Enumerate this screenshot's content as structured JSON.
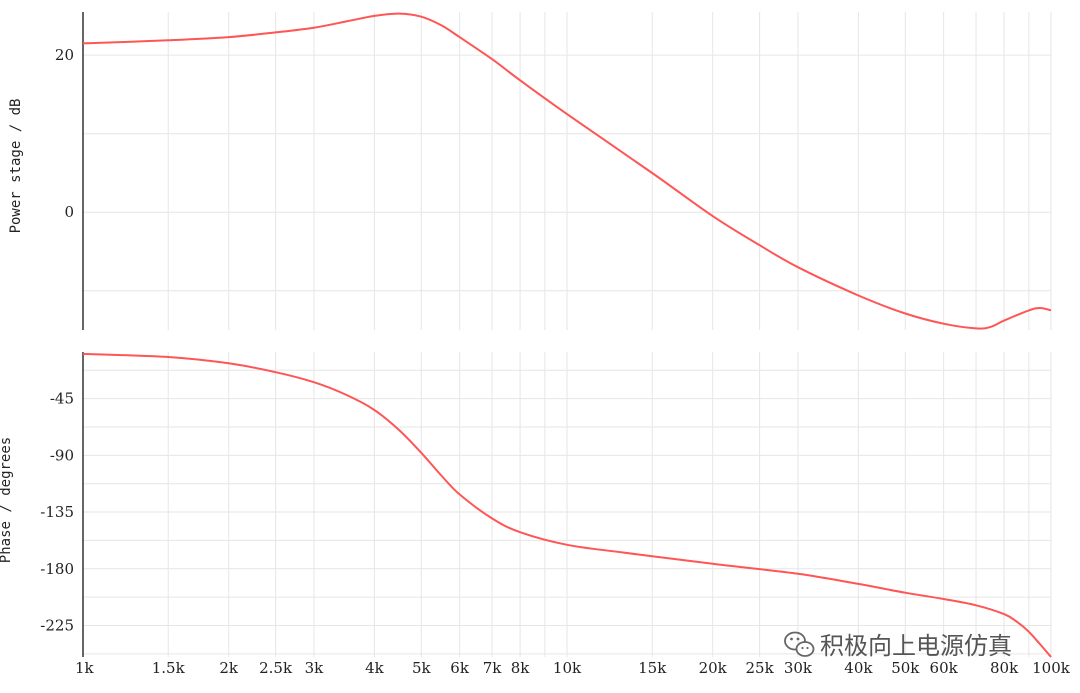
{
  "chart_data": [
    {
      "type": "line",
      "title": "",
      "xlabel": "",
      "ylabel": "Power stage / dB",
      "x_scale": "log",
      "xlim": [
        1000,
        100000
      ],
      "ylim": [
        -15,
        25.5
      ],
      "grid": true,
      "yticks": [
        {
          "value": 20,
          "label": "20"
        },
        {
          "value": 0,
          "label": "0"
        }
      ],
      "series": [
        {
          "color": "#ff5555",
          "x": [
            1000,
            1500,
            2000,
            2500,
            3000,
            3500,
            4000,
            4500,
            5000,
            5500,
            6000,
            7000,
            8000,
            10000,
            15000,
            20000,
            25000,
            30000,
            40000,
            50000,
            60000,
            70000,
            75000,
            80000,
            90000,
            95000,
            100000
          ],
          "y": [
            21.5,
            21.9,
            22.3,
            22.9,
            23.5,
            24.3,
            25.0,
            25.3,
            24.9,
            23.8,
            22.3,
            19.5,
            16.8,
            12.5,
            5.0,
            -0.5,
            -4.2,
            -7.0,
            -10.6,
            -12.9,
            -14.2,
            -14.8,
            -14.6,
            -13.8,
            -12.5,
            -12.2,
            -12.5
          ]
        }
      ]
    },
    {
      "type": "line",
      "title": "",
      "xlabel": "",
      "ylabel": "Phase / degrees",
      "x_scale": "log",
      "xlim": [
        1000,
        100000
      ],
      "ylim": [
        -250,
        -8
      ],
      "grid": true,
      "yticks": [
        {
          "value": -45,
          "label": "-45"
        },
        {
          "value": -90,
          "label": "-90"
        },
        {
          "value": -135,
          "label": "-135"
        },
        {
          "value": -180,
          "label": "-180"
        },
        {
          "value": -225,
          "label": "-225"
        }
      ],
      "xticks": [
        {
          "value": 1000,
          "label": "1k"
        },
        {
          "value": 1500,
          "label": "1.5k"
        },
        {
          "value": 2000,
          "label": "2k"
        },
        {
          "value": 2500,
          "label": "2.5k"
        },
        {
          "value": 3000,
          "label": "3k"
        },
        {
          "value": 4000,
          "label": "4k"
        },
        {
          "value": 5000,
          "label": "5k"
        },
        {
          "value": 6000,
          "label": "6k"
        },
        {
          "value": 7000,
          "label": "7k"
        },
        {
          "value": 8000,
          "label": "8k"
        },
        {
          "value": 10000,
          "label": "10k"
        },
        {
          "value": 15000,
          "label": "15k"
        },
        {
          "value": 20000,
          "label": "20k"
        },
        {
          "value": 25000,
          "label": "25k"
        },
        {
          "value": 30000,
          "label": "30k"
        },
        {
          "value": 40000,
          "label": "40k"
        },
        {
          "value": 50000,
          "label": "50k"
        },
        {
          "value": 60000,
          "label": "60k"
        },
        {
          "value": 80000,
          "label": "80k"
        },
        {
          "value": 100000,
          "label": "100k"
        }
      ],
      "series": [
        {
          "color": "#ff5555",
          "x": [
            1000,
            1500,
            2000,
            2500,
            3000,
            3500,
            4000,
            4500,
            5000,
            5500,
            6000,
            7000,
            8000,
            10000,
            13000,
            15000,
            20000,
            30000,
            40000,
            50000,
            60000,
            70000,
            80000,
            85000,
            90000,
            95000,
            100000
          ],
          "y": [
            -9.5,
            -12,
            -17,
            -24,
            -32,
            -42,
            -54,
            -70,
            -88,
            -106,
            -121,
            -140,
            -151,
            -161,
            -167,
            -170,
            -176,
            -184,
            -192,
            -199,
            -204,
            -209,
            -216,
            -222,
            -230,
            -240,
            -250
          ]
        }
      ]
    }
  ],
  "watermark": {
    "text": "积极向上电源仿真",
    "icon": "wechat-icon"
  }
}
